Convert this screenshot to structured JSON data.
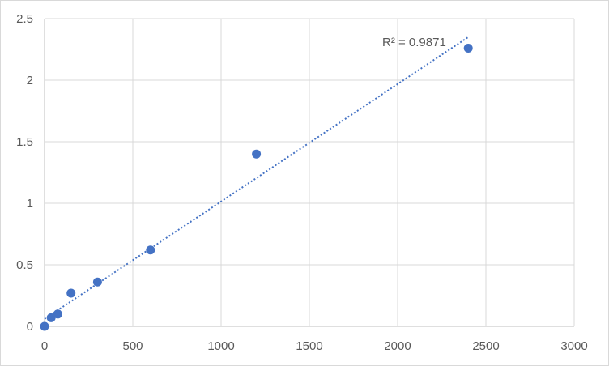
{
  "chart_data": {
    "type": "scatter",
    "title": "",
    "xlabel": "",
    "ylabel": "",
    "xlim": [
      0,
      3000
    ],
    "ylim": [
      0,
      2.5
    ],
    "x_ticks": [
      0,
      500,
      1000,
      1500,
      2000,
      2500,
      3000
    ],
    "y_ticks": [
      0,
      0.5,
      1,
      1.5,
      2,
      2.5
    ],
    "x_tick_labels": [
      "0",
      "500",
      "1000",
      "1500",
      "2000",
      "2500",
      "3000"
    ],
    "y_tick_labels": [
      "0",
      "0.5",
      "1",
      "1.5",
      "2",
      "2.5"
    ],
    "grid": true,
    "marker_color": "#4472c4",
    "series": [
      {
        "x": [
          0,
          37.5,
          75,
          150,
          300,
          600,
          1200,
          2400
        ],
        "y": [
          0.0,
          0.07,
          0.1,
          0.27,
          0.36,
          0.62,
          1.4,
          2.26
        ]
      }
    ],
    "trendline": {
      "type": "linear",
      "from": {
        "x": 0,
        "y": 0.06
      },
      "to": {
        "x": 2400,
        "y": 2.35
      },
      "annotation": "R² = 0.9871"
    }
  }
}
